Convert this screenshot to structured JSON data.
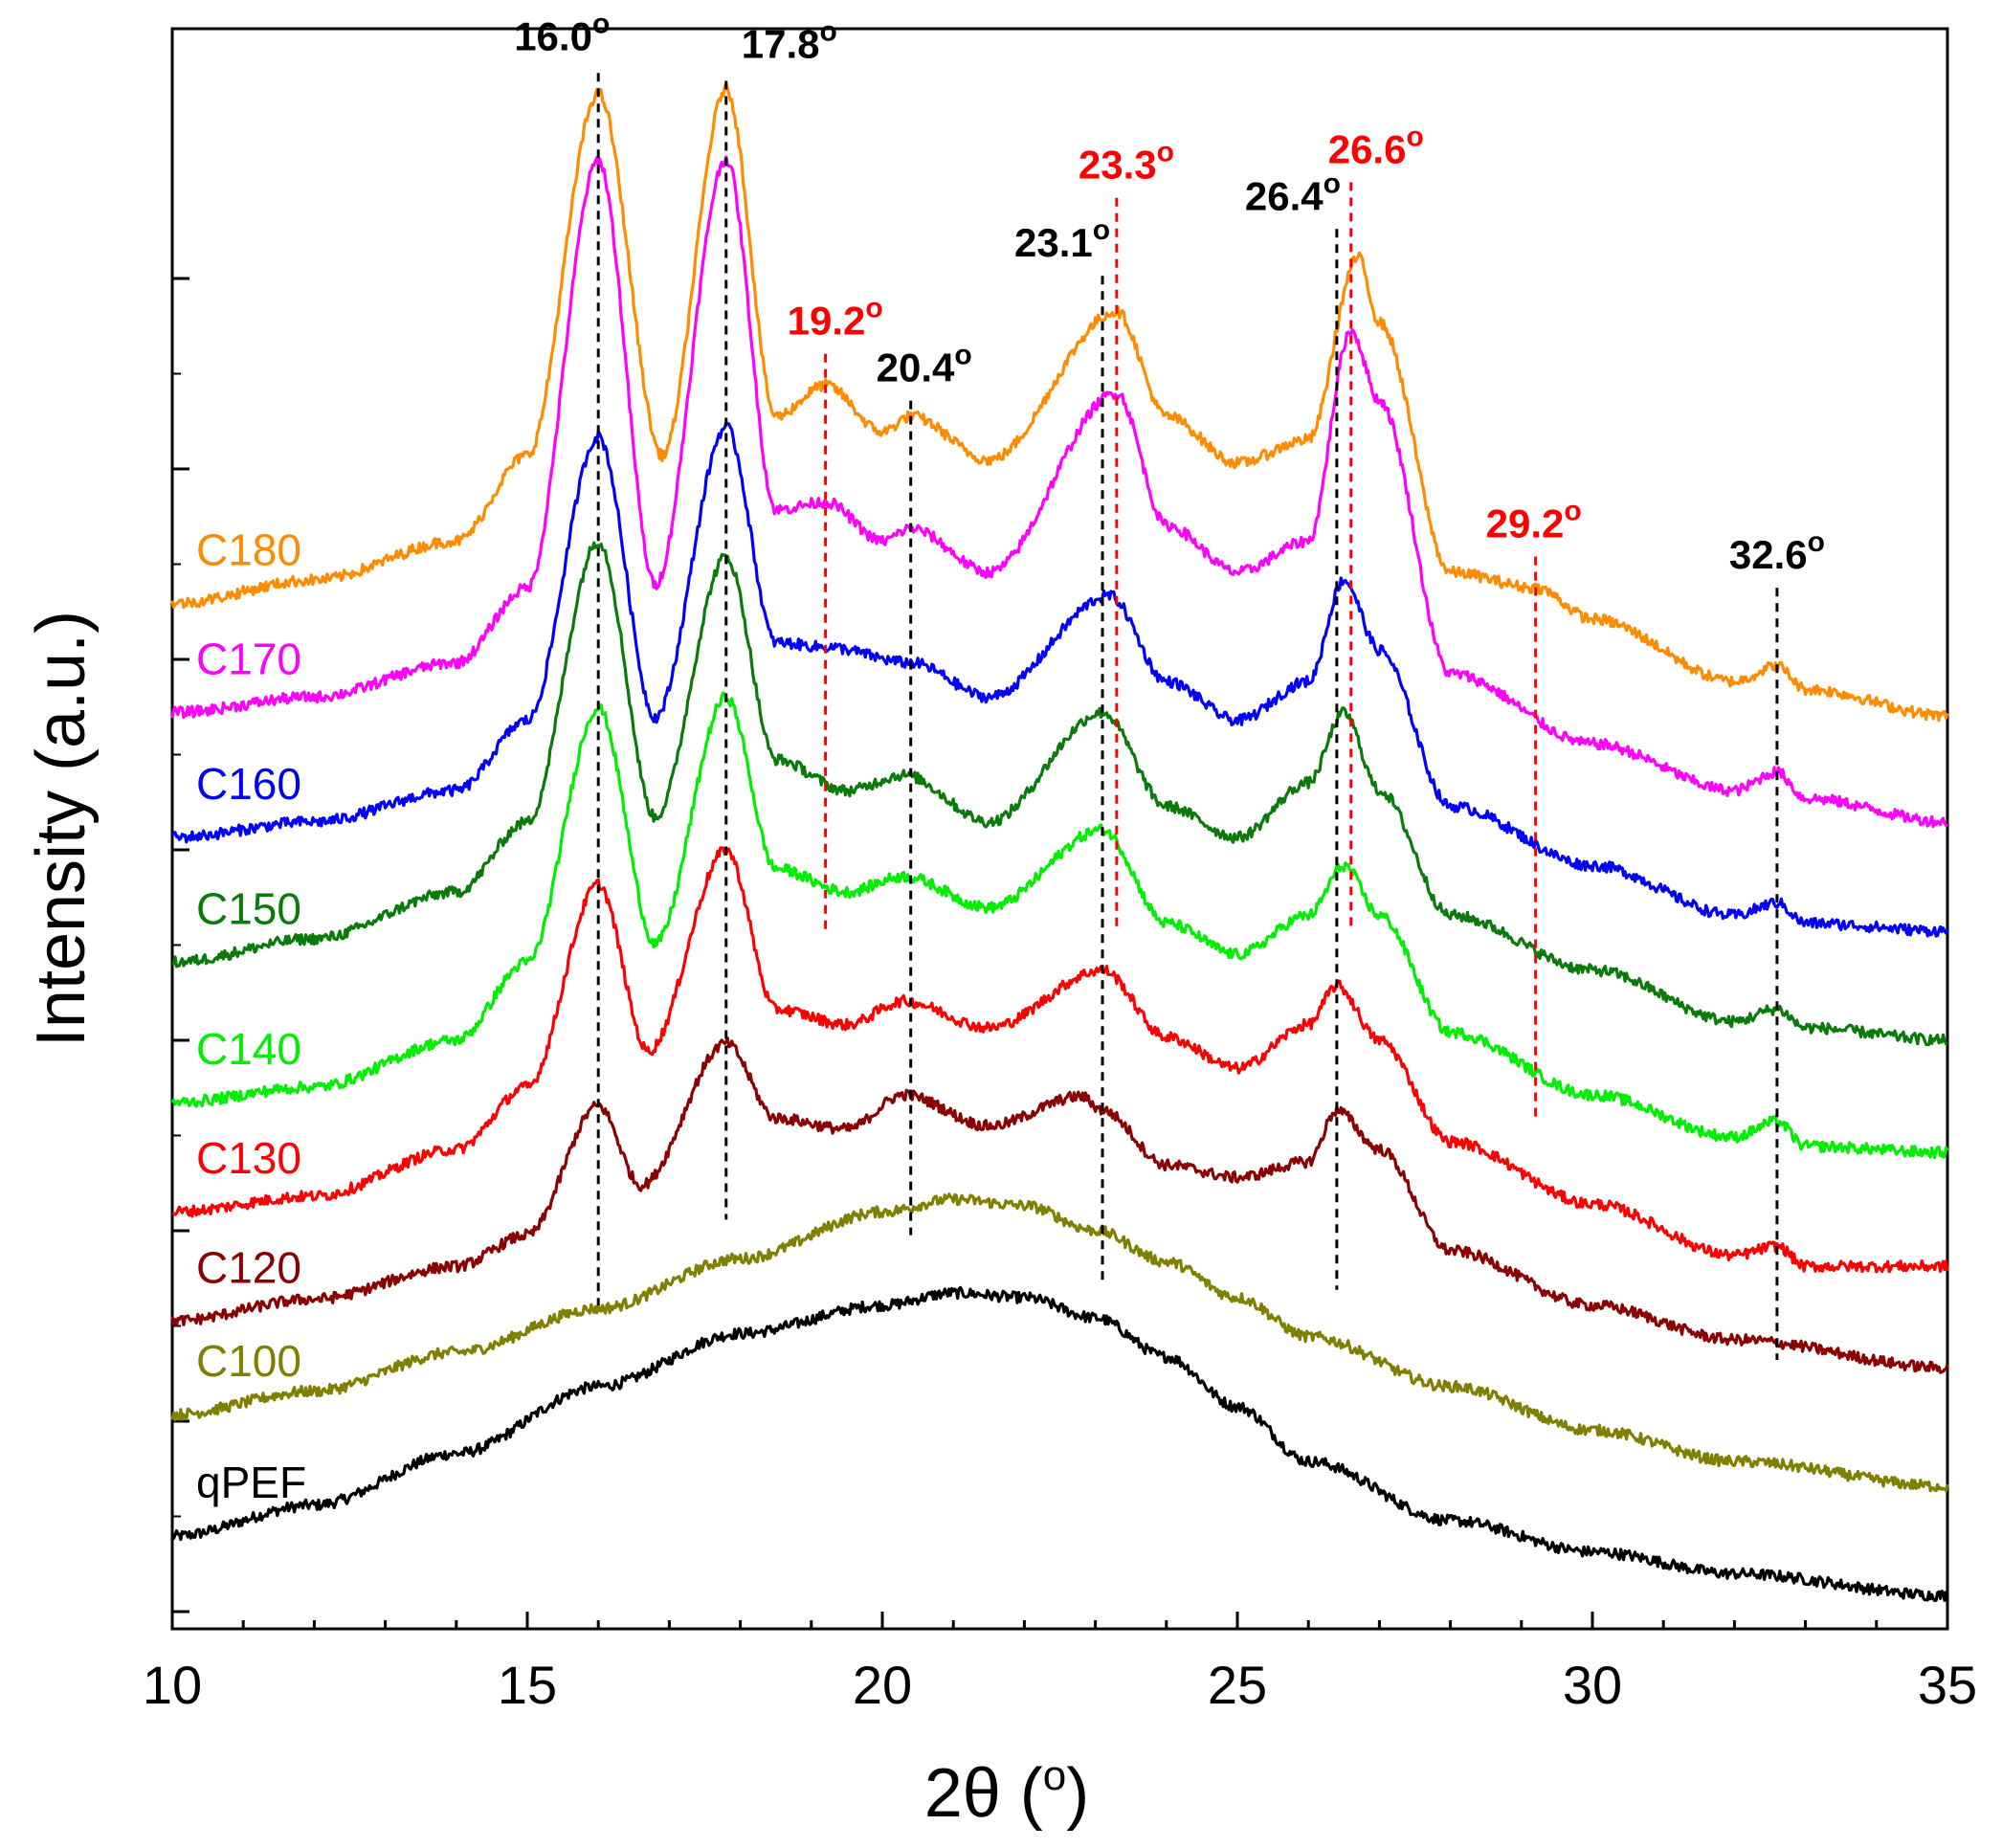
{
  "chart_data": {
    "type": "line",
    "title": "",
    "xlabel": "2θ (o)",
    "ylabel": "Intensity (a.u.)",
    "xlim": [
      10,
      35
    ],
    "ylim": [
      0,
      1
    ],
    "x_ticks": [
      10,
      15,
      20,
      25,
      30,
      35
    ],
    "x_tick_labels": [
      "10",
      "15",
      "20",
      "25",
      "30",
      "35"
    ],
    "grid": false,
    "legend": "inline-left",
    "series": [
      {
        "name": "qPEF",
        "color": "#000000",
        "points": [
          [
            10,
            0.052
          ],
          [
            12,
            0.072
          ],
          [
            14,
            0.105
          ],
          [
            16,
            0.148
          ],
          [
            18,
            0.182
          ],
          [
            20,
            0.2
          ],
          [
            21,
            0.208
          ],
          [
            22,
            0.205
          ],
          [
            23,
            0.192
          ],
          [
            24,
            0.167
          ],
          [
            25,
            0.135
          ],
          [
            26,
            0.1
          ],
          [
            28,
            0.062
          ],
          [
            30,
            0.042
          ],
          [
            32,
            0.028
          ],
          [
            35,
            0.014
          ]
        ]
      },
      {
        "name": "C100",
        "color": "#808000",
        "points": [
          [
            10,
            0.13
          ],
          [
            12,
            0.145
          ],
          [
            14,
            0.17
          ],
          [
            16,
            0.198
          ],
          [
            18,
            0.23
          ],
          [
            20,
            0.26
          ],
          [
            21,
            0.268
          ],
          [
            22,
            0.264
          ],
          [
            23,
            0.248
          ],
          [
            24,
            0.228
          ],
          [
            25,
            0.205
          ],
          [
            26,
            0.18
          ],
          [
            28,
            0.148
          ],
          [
            30,
            0.12
          ],
          [
            32,
            0.1
          ],
          [
            35,
            0.084
          ]
        ]
      },
      {
        "name": "C120",
        "color": "#8b0000",
        "points": [
          [
            10,
            0.19
          ],
          [
            12,
            0.204
          ],
          [
            14,
            0.225
          ],
          [
            15,
            0.245
          ],
          [
            16,
            0.328
          ],
          [
            16.6,
            0.277
          ],
          [
            17.8,
            0.368
          ],
          [
            18.5,
            0.32
          ],
          [
            19.5,
            0.313
          ],
          [
            20.3,
            0.335
          ],
          [
            21.5,
            0.315
          ],
          [
            22.8,
            0.334
          ],
          [
            23.1,
            0.325
          ],
          [
            24,
            0.29
          ],
          [
            25,
            0.282
          ],
          [
            26,
            0.292
          ],
          [
            26.4,
            0.325
          ],
          [
            27,
            0.3
          ],
          [
            28,
            0.235
          ],
          [
            30,
            0.2
          ],
          [
            32,
            0.178
          ],
          [
            35,
            0.16
          ]
        ]
      },
      {
        "name": "C130",
        "color": "#ff0000",
        "points": [
          [
            10,
            0.26
          ],
          [
            12,
            0.27
          ],
          [
            14,
            0.3
          ],
          [
            15,
            0.34
          ],
          [
            16,
            0.47
          ],
          [
            16.7,
            0.363
          ],
          [
            17.8,
            0.492
          ],
          [
            18.5,
            0.39
          ],
          [
            19.5,
            0.38
          ],
          [
            20.3,
            0.395
          ],
          [
            21.5,
            0.378
          ],
          [
            23.1,
            0.415
          ],
          [
            24,
            0.372
          ],
          [
            25,
            0.352
          ],
          [
            26,
            0.38
          ],
          [
            26.4,
            0.405
          ],
          [
            27,
            0.37
          ],
          [
            28,
            0.305
          ],
          [
            30,
            0.265
          ],
          [
            32,
            0.232
          ],
          [
            32.6,
            0.238
          ],
          [
            33,
            0.225
          ],
          [
            35,
            0.225
          ]
        ]
      },
      {
        "name": "C140",
        "color": "#00ee00",
        "points": [
          [
            10,
            0.33
          ],
          [
            12,
            0.34
          ],
          [
            14,
            0.37
          ],
          [
            15,
            0.42
          ],
          [
            16,
            0.583
          ],
          [
            16.8,
            0.432
          ],
          [
            17.8,
            0.59
          ],
          [
            18.5,
            0.48
          ],
          [
            19.5,
            0.465
          ],
          [
            20.3,
            0.475
          ],
          [
            21.5,
            0.455
          ],
          [
            23.1,
            0.505
          ],
          [
            24,
            0.445
          ],
          [
            25,
            0.425
          ],
          [
            26,
            0.45
          ],
          [
            26.5,
            0.482
          ],
          [
            27,
            0.45
          ],
          [
            28,
            0.375
          ],
          [
            30,
            0.335
          ],
          [
            32,
            0.308
          ],
          [
            32.6,
            0.318
          ],
          [
            33,
            0.302
          ],
          [
            35,
            0.298
          ]
        ]
      },
      {
        "name": "C150",
        "color": "#0a7a0a",
        "points": [
          [
            10,
            0.42
          ],
          [
            12,
            0.435
          ],
          [
            14,
            0.465
          ],
          [
            15,
            0.51
          ],
          [
            16,
            0.69
          ],
          [
            16.8,
            0.513
          ],
          [
            17.8,
            0.68
          ],
          [
            18.5,
            0.55
          ],
          [
            19.5,
            0.53
          ],
          [
            20.3,
            0.54
          ],
          [
            21.5,
            0.51
          ],
          [
            23.1,
            0.58
          ],
          [
            24,
            0.52
          ],
          [
            25,
            0.5
          ],
          [
            26,
            0.535
          ],
          [
            26.5,
            0.58
          ],
          [
            27,
            0.53
          ],
          [
            28,
            0.45
          ],
          [
            30,
            0.415
          ],
          [
            32,
            0.382
          ],
          [
            32.6,
            0.39
          ],
          [
            33,
            0.378
          ],
          [
            35,
            0.37
          ]
        ]
      },
      {
        "name": "C160",
        "color": "#0000ff",
        "points": [
          [
            10,
            0.5
          ],
          [
            12,
            0.51
          ],
          [
            14,
            0.53
          ],
          [
            15,
            0.575
          ],
          [
            16,
            0.757
          ],
          [
            16.8,
            0.577
          ],
          [
            17.8,
            0.763
          ],
          [
            18.5,
            0.625
          ],
          [
            19.2,
            0.622
          ],
          [
            20.4,
            0.612
          ],
          [
            21.5,
            0.59
          ],
          [
            23.2,
            0.655
          ],
          [
            24,
            0.6
          ],
          [
            25,
            0.575
          ],
          [
            26,
            0.6
          ],
          [
            26.5,
            0.665
          ],
          [
            27,
            0.62
          ],
          [
            28,
            0.52
          ],
          [
            30,
            0.482
          ],
          [
            32,
            0.45
          ],
          [
            32.6,
            0.458
          ],
          [
            33,
            0.445
          ],
          [
            35,
            0.44
          ]
        ]
      },
      {
        "name": "C170",
        "color": "#ff00ff",
        "points": [
          [
            10,
            0.58
          ],
          [
            12,
            0.59
          ],
          [
            14,
            0.612
          ],
          [
            15,
            0.66
          ],
          [
            16,
            0.934
          ],
          [
            16.8,
            0.662
          ],
          [
            17.8,
            0.935
          ],
          [
            18.5,
            0.71
          ],
          [
            19.2,
            0.715
          ],
          [
            20,
            0.69
          ],
          [
            20.4,
            0.698
          ],
          [
            21.5,
            0.67
          ],
          [
            23.3,
            0.785
          ],
          [
            24,
            0.7
          ],
          [
            25,
            0.67
          ],
          [
            26,
            0.69
          ],
          [
            26.6,
            0.825
          ],
          [
            27,
            0.78
          ],
          [
            28,
            0.605
          ],
          [
            30,
            0.56
          ],
          [
            32,
            0.53
          ],
          [
            32.6,
            0.542
          ],
          [
            33,
            0.525
          ],
          [
            35,
            0.51
          ]
        ]
      },
      {
        "name": "C180",
        "color": "#ff8c00",
        "points": [
          [
            10,
            0.65
          ],
          [
            12,
            0.665
          ],
          [
            14,
            0.69
          ],
          [
            15,
            0.745
          ],
          [
            16,
            0.977
          ],
          [
            16.9,
            0.745
          ],
          [
            17.8,
            0.98
          ],
          [
            18.5,
            0.77
          ],
          [
            19.2,
            0.79
          ],
          [
            20,
            0.76
          ],
          [
            20.4,
            0.77
          ],
          [
            21.5,
            0.742
          ],
          [
            23.3,
            0.837
          ],
          [
            24,
            0.77
          ],
          [
            25,
            0.74
          ],
          [
            26,
            0.755
          ],
          [
            26.7,
            0.872
          ],
          [
            27,
            0.83
          ],
          [
            28,
            0.67
          ],
          [
            29.2,
            0.66
          ],
          [
            30,
            0.64
          ],
          [
            32,
            0.6
          ],
          [
            32.6,
            0.61
          ],
          [
            33,
            0.595
          ],
          [
            35,
            0.578
          ]
        ]
      }
    ],
    "peak_annotations": [
      {
        "label": "16.0o",
        "x": 16.0,
        "color": "#000000",
        "text": "16.0",
        "sup": "o"
      },
      {
        "label": "17.8o",
        "x": 17.8,
        "color": "#000000",
        "text": "17.8",
        "sup": "o"
      },
      {
        "label": "19.2o",
        "x": 19.2,
        "color": "#ff0000",
        "text": "19.2",
        "sup": "o"
      },
      {
        "label": "20.4o",
        "x": 20.4,
        "color": "#000000",
        "text": "20.4",
        "sup": "o"
      },
      {
        "label": "23.1o",
        "x": 23.1,
        "color": "#000000",
        "text": "23.1",
        "sup": "o"
      },
      {
        "label": "23.3o",
        "x": 23.3,
        "color": "#ff0000",
        "text": "23.3",
        "sup": "o"
      },
      {
        "label": "26.4o",
        "x": 26.4,
        "color": "#000000",
        "text": "26.4",
        "sup": "o"
      },
      {
        "label": "26.6o",
        "x": 26.6,
        "color": "#ff0000",
        "text": "26.6",
        "sup": "o"
      },
      {
        "label": "29.2o",
        "x": 29.2,
        "color": "#ff0000",
        "text": "29.2",
        "sup": "o"
      },
      {
        "label": "32.6o",
        "x": 32.6,
        "color": "#000000",
        "text": "32.6",
        "sup": "o"
      }
    ]
  }
}
